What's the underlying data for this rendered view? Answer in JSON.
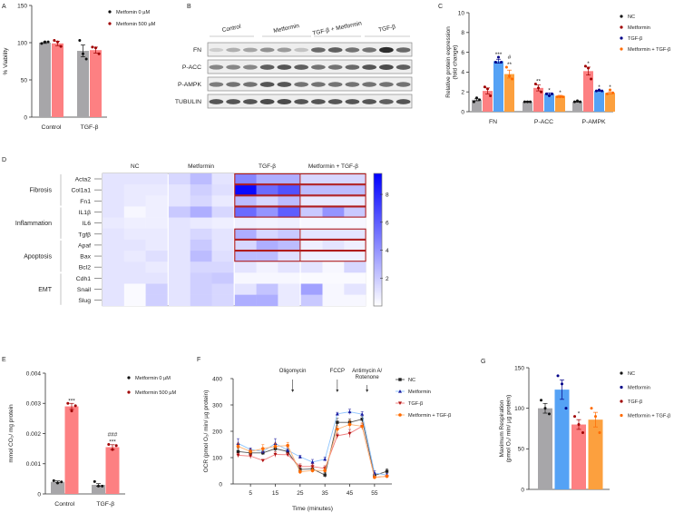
{
  "panel_letters": [
    "A",
    "B",
    "C",
    "D",
    "E",
    "F",
    "G"
  ],
  "chart_data": [
    {
      "id": "A",
      "type": "bar",
      "ylabel": "% Viability",
      "ylim": [
        0,
        150
      ],
      "yticks": [
        0,
        50,
        100,
        150
      ],
      "ytick_labels": [
        "0",
        "50",
        "100",
        "150"
      ],
      "categories": [
        "Control",
        "TGF-β"
      ],
      "series": [
        {
          "name": "Metfomin 0 µM",
          "bar_color": "#a7a6a9",
          "dot_color": "#111111",
          "values": [
            100,
            89
          ],
          "sem": [
            1,
            8
          ],
          "points": [
            [
              99,
              101,
              101
            ],
            [
              103,
              85,
              78
            ]
          ]
        },
        {
          "name": "Metfomin 500 µM",
          "bar_color": "#fd8082",
          "dot_color": "#a00000",
          "values": [
            99,
            90
          ],
          "sem": [
            3,
            4
          ],
          "points": [
            [
              103,
              101,
              95
            ],
            [
              94,
              93,
              85
            ]
          ]
        }
      ],
      "annotations": []
    },
    {
      "id": "C",
      "type": "bar",
      "ylabel": "Relative protein expression\n(fold change)",
      "ylim": [
        0,
        10
      ],
      "yticks": [
        0,
        2,
        4,
        6,
        8,
        10
      ],
      "ytick_labels": [
        "0",
        "2",
        "4",
        "6",
        "8",
        "10"
      ],
      "categories": [
        "FN",
        "P-ACC",
        "P-AMPK"
      ],
      "series": [
        {
          "name": "NC",
          "bar_color": "#a7a6a9",
          "dot_color": "#111111",
          "values": [
            1.2,
            1.0,
            1.0
          ],
          "sem": [
            0.1,
            0.05,
            0.05
          ],
          "points": [
            [
              1.0,
              1.4,
              1.2
            ],
            [
              1.0,
              1.0,
              1.0
            ],
            [
              1.0,
              1.1,
              1.0
            ]
          ]
        },
        {
          "name": "Metformin",
          "bar_color": "#fd8082",
          "dot_color": "#a00000",
          "values": [
            2.1,
            2.4,
            4.1
          ],
          "sem": [
            0.3,
            0.3,
            0.4
          ],
          "points": [
            [
              2.5,
              2.3,
              1.6
            ],
            [
              2.8,
              2.4,
              2.0
            ],
            [
              4.6,
              4.4,
              3.3
            ]
          ]
        },
        {
          "name": "TGF-β",
          "bar_color": "#55a2f5",
          "dot_color": "#000088",
          "values": [
            5.1,
            1.8,
            2.1
          ],
          "sem": [
            0.2,
            0.1,
            0.05
          ],
          "points": [
            [
              5.0,
              5.5,
              5.0
            ],
            [
              1.8,
              1.6,
              1.8
            ],
            [
              2.1,
              2.2,
              2.1
            ]
          ]
        },
        {
          "name": "Metformin + TGF-β",
          "bar_color": "#fca03e",
          "dot_color": "#ff6a00",
          "values": [
            3.8,
            1.6,
            1.9
          ],
          "sem": [
            0.4,
            0.05,
            0.1
          ],
          "points": [
            [
              4.5,
              3.6,
              3.3
            ],
            [
              1.5,
              1.5,
              1.5
            ],
            [
              1.8,
              2.2,
              1.9
            ]
          ]
        }
      ],
      "annotations": [
        {
          "category": 0,
          "series": 2,
          "text": "***"
        },
        {
          "category": 0,
          "series": 3,
          "text": "**"
        },
        {
          "category": 0,
          "series": 3,
          "text": "#",
          "row": 2
        },
        {
          "category": 1,
          "series": 1,
          "text": "**"
        },
        {
          "category": 1,
          "series": 2,
          "text": "*"
        },
        {
          "category": 1,
          "series": 3,
          "text": "*"
        },
        {
          "category": 2,
          "series": 1,
          "text": "*"
        },
        {
          "category": 2,
          "series": 2,
          "text": "*"
        },
        {
          "category": 2,
          "series": 3,
          "text": "*"
        }
      ]
    },
    {
      "id": "D",
      "type": "heatmap",
      "groups": [
        "NC",
        "Metformin",
        "TGF-β",
        "Metformin + TGF-β"
      ],
      "replicates_per_group": 3,
      "categories": [
        {
          "name": "Fibrosis",
          "rows": [
            0,
            1,
            2
          ]
        },
        {
          "name": "Inflammation",
          "rows": [
            3,
            4,
            5
          ]
        },
        {
          "name": "Apoptosis",
          "rows": [
            6,
            7,
            8
          ]
        },
        {
          "name": "EMT",
          "rows": [
            9,
            10,
            11
          ]
        }
      ],
      "rows": [
        "Acta2",
        "Col1a1",
        "Fn1",
        "IL1β",
        "IL6",
        "Tgfβ",
        "Apaf",
        "Bax",
        "Bcl2",
        "Cdh1",
        "Snail",
        "Slug"
      ],
      "values": [
        [
          1,
          1,
          1,
          1.5,
          2.5,
          1,
          4.5,
          3,
          3,
          1.5,
          1.5,
          1.5
        ],
        [
          1,
          0.8,
          0.8,
          1,
          1.8,
          1.2,
          9.2,
          5.5,
          6.5,
          2.5,
          2.5,
          2.5
        ],
        [
          1,
          0.8,
          0.6,
          1,
          1.5,
          0.8,
          2.5,
          1.5,
          2.5,
          0.8,
          0.8,
          0.8
        ],
        [
          1,
          0.3,
          0.6,
          2,
          3,
          1.5,
          5.5,
          4,
          6,
          2,
          4,
          2
        ],
        [
          0.8,
          0.6,
          0.6,
          1,
          0.8,
          0.6,
          0.6,
          0.5,
          0.6,
          0.3,
          0.3,
          0.3
        ],
        [
          1,
          0.8,
          0.8,
          1,
          1.5,
          1,
          3,
          1.5,
          2,
          1,
          1,
          1
        ],
        [
          1,
          1,
          0.8,
          1,
          2,
          1,
          1.5,
          3,
          2.5,
          0.6,
          1,
          0.6
        ],
        [
          1,
          0.8,
          1.2,
          1,
          2.5,
          1.2,
          2.5,
          2.5,
          1.2,
          0.6,
          0.6,
          0.6
        ],
        [
          1,
          1,
          0.8,
          1,
          1.5,
          1.5,
          1,
          0.5,
          1,
          1,
          0.3,
          1.5
        ],
        [
          1,
          1,
          1,
          1,
          1.8,
          2,
          0.3,
          0.3,
          0.3,
          0.2,
          0.2,
          0.2
        ],
        [
          1,
          0.2,
          1.8,
          1,
          1.8,
          1.5,
          1,
          2.2,
          0.8,
          3.5,
          0.3,
          1
        ],
        [
          1,
          0.2,
          1.8,
          1,
          1.8,
          1.5,
          3,
          3,
          0.8,
          2,
          0.3,
          0.3
        ]
      ],
      "highlighted_rows": [
        0,
        1,
        2,
        3,
        5,
        6,
        7
      ],
      "highlight_color": "#b01c1c",
      "colorbar": {
        "range": [
          0,
          9.5
        ],
        "ticks": [
          2,
          4,
          6,
          8
        ],
        "tick_labels": [
          "2",
          "4",
          "6",
          "8"
        ],
        "low_color": "#ffffff",
        "high_color": "#0000ff"
      }
    },
    {
      "id": "E",
      "type": "bar",
      "ylabel": "mmol CO₂/ mg protein",
      "ylim": [
        0,
        0.004
      ],
      "yticks": [
        0,
        0.001,
        0.002,
        0.003,
        0.004
      ],
      "ytick_labels": [
        "0",
        "0.001",
        "0.002",
        "0.003",
        "0.004"
      ],
      "categories": [
        "Control",
        "TGF-β"
      ],
      "series": [
        {
          "name": "Metformin 0 µM",
          "bar_color": "#a7a6a9",
          "dot_color": "#111111",
          "values": [
            0.0004,
            0.0003
          ],
          "sem": [
            3e-05,
            4e-05
          ],
          "points": [
            [
              0.00044,
              0.00036,
              0.0004
            ],
            [
              0.00041,
              0.00026,
              0.00026
            ]
          ]
        },
        {
          "name": "Metformin 500 µM",
          "bar_color": "#fd8082",
          "dot_color": "#a00000",
          "values": [
            0.0029,
            0.00155
          ],
          "sem": [
            0.0001,
            8e-05
          ],
          "points": [
            [
              0.003,
              0.00275,
              0.00292
            ],
            [
              0.00164,
              0.00147,
              0.0016
            ]
          ]
        }
      ],
      "annotations": [
        {
          "category": 0,
          "series": 1,
          "text": "***"
        },
        {
          "category": 1,
          "series": 1,
          "text": "***"
        },
        {
          "category": 1,
          "series": 1,
          "text": "###",
          "row": 2
        }
      ]
    },
    {
      "id": "F",
      "type": "line",
      "xlabel": "Time (minutes)",
      "ylabel": "OCR (pmol O₂/ min/ µg protein)",
      "xlim": [
        -2,
        62
      ],
      "ylim": [
        0,
        400
      ],
      "xticks": [
        5,
        15,
        25,
        35,
        45,
        55
      ],
      "xtick_labels": [
        "5",
        "15",
        "25",
        "35",
        "45",
        "55"
      ],
      "yticks": [
        0,
        100,
        200,
        300,
        400
      ],
      "ytick_labels": [
        "0",
        "100",
        "200",
        "300",
        "400"
      ],
      "x": [
        0,
        5,
        10,
        15,
        20,
        25,
        30,
        35,
        40,
        45,
        50,
        55,
        60
      ],
      "series": [
        {
          "name": "NC",
          "color": "#222222",
          "line_color": "#555555",
          "marker": "square",
          "values": [
            123,
            118,
            118,
            134,
            123,
            55,
            57,
            34,
            234,
            234,
            246,
            32,
            48
          ],
          "err": [
            12,
            10,
            8,
            10,
            10,
            12,
            10,
            10,
            15,
            12,
            10,
            8,
            10
          ]
        },
        {
          "name": "Metformin",
          "color": "#1a1aa0",
          "line_color": "#8ec5ff",
          "marker": "triangle-up",
          "values": [
            154,
            131,
            123,
            154,
            128,
            103,
            83,
            94,
            266,
            274,
            265,
            42,
            34
          ],
          "err": [
            18,
            6,
            8,
            18,
            10,
            6,
            10,
            8,
            6,
            10,
            10,
            8,
            6
          ]
        },
        {
          "name": "TGF-β",
          "color": "#b01010",
          "line_color": "#f07a7a",
          "marker": "triangle-down",
          "values": [
            109,
            106,
            89,
            112,
            111,
            66,
            66,
            59,
            183,
            192,
            219,
            25,
            29
          ],
          "err": [
            8,
            10,
            4,
            10,
            8,
            10,
            10,
            10,
            10,
            15,
            12,
            5,
            5
          ]
        },
        {
          "name": "Metformin + TGF-β",
          "color": "#ff6a00",
          "line_color": "#ffb070",
          "marker": "circle",
          "values": [
            143,
            123,
            134,
            143,
            146,
            46,
            51,
            51,
            208,
            226,
            219,
            25,
            29
          ],
          "err": [
            12,
            8,
            15,
            12,
            12,
            8,
            8,
            8,
            12,
            15,
            12,
            5,
            5
          ]
        }
      ],
      "injections": [
        {
          "time": 22,
          "label": "Oligomycin"
        },
        {
          "time": 40,
          "label": "FCCP"
        },
        {
          "time": 52,
          "label": "Antimycin A/\nRotenone"
        }
      ]
    },
    {
      "id": "G",
      "type": "bar",
      "ylabel": "Maximum Respiration\n(pmol O₂/ min/ µg protein)",
      "ylim": [
        0,
        150
      ],
      "yticks": [
        0,
        50,
        100,
        150
      ],
      "ytick_labels": [
        "0",
        "50",
        "100",
        "150"
      ],
      "categories": [
        ""
      ],
      "series": [
        {
          "name": "NC",
          "bar_color": "#a7a6a9",
          "dot_color": "#111111",
          "values": [
            100
          ],
          "sem": [
            6
          ],
          "points": [
            [
              110,
              100,
              93
            ]
          ]
        },
        {
          "name": "Metformin",
          "bar_color": "#55a2f5",
          "dot_color": "#000088",
          "values": [
            123
          ],
          "sem": [
            12
          ],
          "points": [
            [
              140,
              130,
              100
            ]
          ]
        },
        {
          "name": "TGF-β",
          "bar_color": "#fd8082",
          "dot_color": "#a00000",
          "values": [
            80
          ],
          "sem": [
            6
          ],
          "points": [
            [
              90,
              80,
              70
            ]
          ]
        },
        {
          "name": "Metformin + TGF-β",
          "bar_color": "#fca03e",
          "dot_color": "#ff6a00",
          "values": [
            86
          ],
          "sem": [
            9
          ],
          "points": [
            [
              100,
              90,
              70
            ]
          ]
        }
      ],
      "annotations": [
        {
          "category": 0,
          "series": 2,
          "text": "*"
        }
      ]
    }
  ],
  "blot": {
    "lanes": [
      "Control",
      "Metformin",
      "TGF-β + Metformin",
      "TGF-β"
    ],
    "rows": [
      {
        "label": "FN",
        "bands": [
          0.15,
          0.3,
          0.35,
          0.45,
          0.4,
          0.2,
          0.65,
          0.7,
          0.6,
          0.6,
          0.95,
          0.65
        ]
      },
      {
        "label": "P-ACC",
        "bands": [
          0.5,
          0.5,
          0.5,
          0.7,
          0.75,
          0.7,
          0.6,
          0.6,
          0.65,
          0.75,
          0.8,
          0.7
        ]
      },
      {
        "label": "P-AMPK",
        "bands": [
          0.55,
          0.6,
          0.6,
          0.75,
          0.75,
          0.6,
          0.6,
          0.6,
          0.6,
          0.6,
          0.6,
          0.6
        ]
      },
      {
        "label": "TUBULIN",
        "bands": [
          0.75,
          0.75,
          0.75,
          0.8,
          0.8,
          0.75,
          0.75,
          0.75,
          0.75,
          0.75,
          0.7,
          0.75
        ]
      }
    ]
  }
}
